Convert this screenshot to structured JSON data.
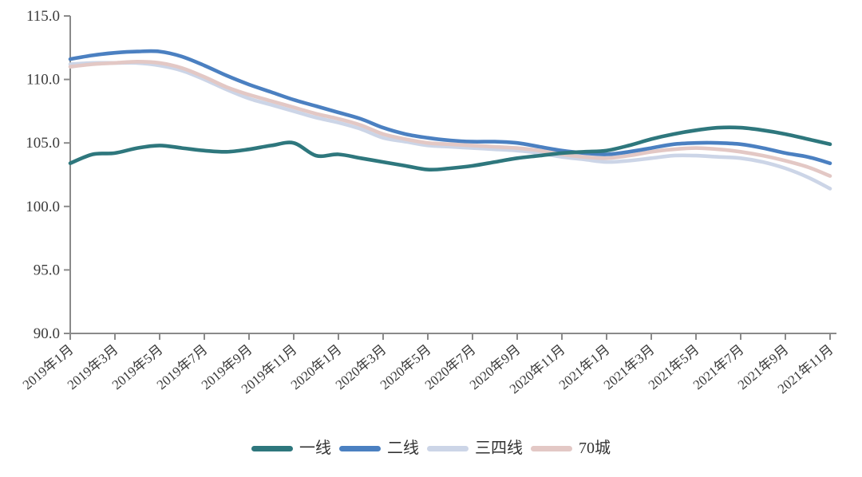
{
  "chart_data": {
    "type": "line",
    "title": "",
    "xlabel": "",
    "ylabel": "",
    "ylim": [
      90.0,
      115.0
    ],
    "y_tick_labels": [
      "115.0",
      "110.0",
      "105.0",
      "100.0",
      "95.0",
      "90.0"
    ],
    "x_tick_labels": [
      "2019年1月",
      "2019年3月",
      "2019年5月",
      "2019年7月",
      "2019年9月",
      "2019年11月",
      "2020年1月",
      "2020年3月",
      "2020年5月",
      "2020年7月",
      "2020年9月",
      "2020年11月",
      "2021年1月",
      "2021年3月",
      "2021年5月",
      "2021年7月",
      "2021年9月",
      "2021年11月"
    ],
    "x_frequency": "monthly",
    "points_per_series": 35,
    "grid": false,
    "legend_position": "bottom",
    "axis_color": "#8a8a8a",
    "text_color": "#3b3b3b",
    "series": [
      {
        "name": "一线",
        "color": "#2E777D",
        "values": [
          103.4,
          104.1,
          104.2,
          104.6,
          104.8,
          104.6,
          104.4,
          104.3,
          104.5,
          104.8,
          105.0,
          104.0,
          104.1,
          103.8,
          103.5,
          103.2,
          102.9,
          103.0,
          103.2,
          103.5,
          103.8,
          104.0,
          104.2,
          104.3,
          104.4,
          104.8,
          105.3,
          105.7,
          106.0,
          106.2,
          106.2,
          106.0,
          105.7,
          105.3,
          104.9
        ]
      },
      {
        "name": "二线",
        "color": "#4B80C1",
        "values": [
          111.6,
          111.9,
          112.1,
          112.2,
          112.2,
          111.8,
          111.1,
          110.3,
          109.6,
          109.0,
          108.4,
          107.9,
          107.4,
          106.9,
          106.2,
          105.7,
          105.4,
          105.2,
          105.1,
          105.1,
          105.0,
          104.7,
          104.4,
          104.2,
          104.1,
          104.3,
          104.6,
          104.9,
          105.0,
          105.0,
          104.9,
          104.6,
          104.2,
          103.9,
          103.4
        ]
      },
      {
        "name": "三四线",
        "color": "#CCD5E7",
        "values": [
          111.2,
          111.3,
          111.3,
          111.3,
          111.1,
          110.7,
          110.0,
          109.2,
          108.5,
          108.0,
          107.5,
          107.0,
          106.6,
          106.1,
          105.4,
          105.1,
          104.8,
          104.7,
          104.6,
          104.5,
          104.4,
          104.2,
          103.9,
          103.7,
          103.5,
          103.6,
          103.8,
          104.0,
          104.0,
          103.9,
          103.8,
          103.5,
          103.0,
          102.3,
          101.4
        ]
      },
      {
        "name": "70城",
        "color": "#E3C8C5",
        "values": [
          111.0,
          111.2,
          111.3,
          111.4,
          111.3,
          110.9,
          110.2,
          109.4,
          108.8,
          108.3,
          107.8,
          107.3,
          106.9,
          106.4,
          105.7,
          105.3,
          105.0,
          104.9,
          104.8,
          104.7,
          104.6,
          104.4,
          104.1,
          103.9,
          103.8,
          104.0,
          104.3,
          104.5,
          104.6,
          104.5,
          104.3,
          104.0,
          103.6,
          103.1,
          102.4
        ]
      }
    ]
  }
}
